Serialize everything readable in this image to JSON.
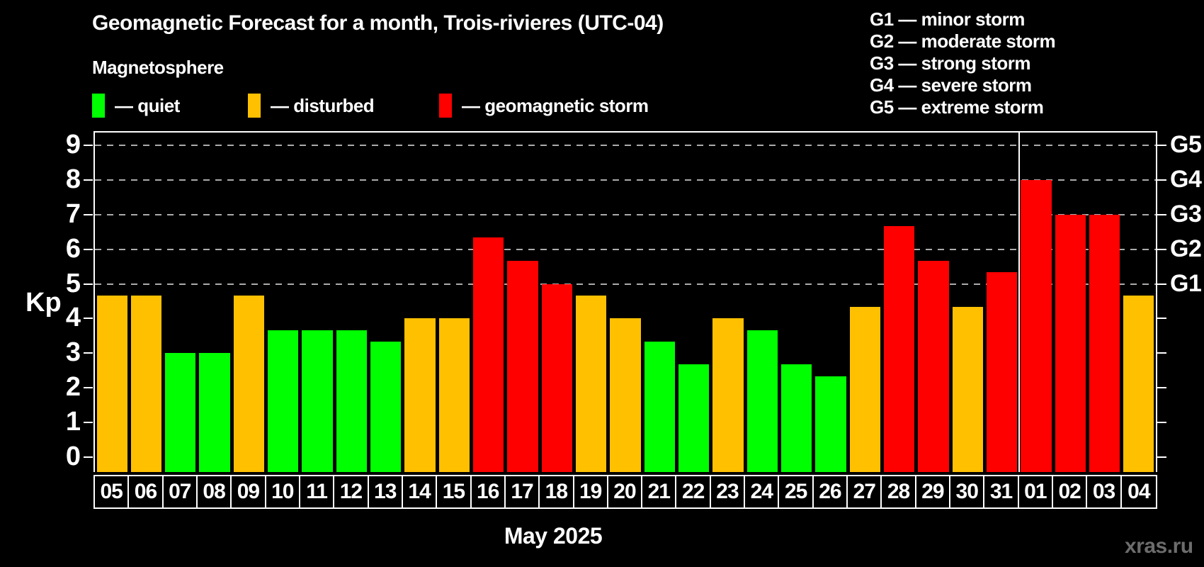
{
  "title": "Geomagnetic Forecast for a month, Trois-rivieres (UTC-04)",
  "subtitle": "Magnetosphere",
  "legend": {
    "items": [
      {
        "key": "quiet",
        "label": "— quiet",
        "color": "#00ff00"
      },
      {
        "key": "disturbed",
        "label": "— disturbed",
        "color": "#ffc000"
      },
      {
        "key": "storm",
        "label": "— geomagnetic storm",
        "color": "#ff0000"
      }
    ]
  },
  "gscale_legend": [
    "G1 — minor storm",
    "G2 — moderate storm",
    "G3 — strong storm",
    "G4 — severe storm",
    "G5 — extreme storm"
  ],
  "axis": {
    "kp_label": "Kp",
    "left_tick_labels": [
      "9",
      "8",
      "7",
      "6",
      "5",
      "4",
      "3",
      "2",
      "1",
      "0"
    ],
    "right_labels": [
      {
        "kp": 9,
        "label": "G5"
      },
      {
        "kp": 8,
        "label": "G4"
      },
      {
        "kp": 7,
        "label": "G3"
      },
      {
        "kp": 6,
        "label": "G2"
      },
      {
        "kp": 5,
        "label": "G1"
      }
    ]
  },
  "month_label": "May 2025",
  "watermark": "xras.ru",
  "chart_data": {
    "type": "bar",
    "title": "Geomagnetic Forecast for a month, Trois-rivieres (UTC-04)",
    "xlabel": "May 2025",
    "ylabel": "Kp",
    "ylim": [
      0,
      9
    ],
    "ytick_step": 1,
    "grid": "dashed horizontal lines at Kp 5,6,7,8,9 only",
    "gridlines": [
      5,
      6,
      7,
      8,
      9
    ],
    "legend_position": "top-left",
    "categories": [
      "05",
      "06",
      "07",
      "08",
      "09",
      "10",
      "11",
      "12",
      "13",
      "14",
      "15",
      "16",
      "17",
      "18",
      "19",
      "20",
      "21",
      "22",
      "23",
      "24",
      "25",
      "26",
      "27",
      "28",
      "29",
      "30",
      "31",
      "01",
      "02",
      "03",
      "04"
    ],
    "values": [
      4.67,
      4.67,
      3.0,
      3.0,
      4.67,
      3.67,
      3.67,
      3.67,
      3.33,
      4.0,
      4.0,
      6.33,
      5.67,
      5.0,
      4.67,
      4.0,
      3.33,
      2.67,
      4.0,
      3.67,
      2.67,
      2.33,
      4.33,
      6.67,
      5.67,
      4.33,
      5.33,
      8.0,
      7.0,
      7.0,
      4.67
    ],
    "statuses": [
      "disturbed",
      "disturbed",
      "quiet",
      "quiet",
      "disturbed",
      "quiet",
      "quiet",
      "quiet",
      "quiet",
      "disturbed",
      "disturbed",
      "storm",
      "storm",
      "storm",
      "disturbed",
      "disturbed",
      "quiet",
      "quiet",
      "disturbed",
      "quiet",
      "quiet",
      "quiet",
      "disturbed",
      "storm",
      "storm",
      "disturbed",
      "storm",
      "storm",
      "storm",
      "storm",
      "disturbed"
    ],
    "status_colors": {
      "quiet": "#00ff00",
      "disturbed": "#ffc000",
      "storm": "#ff0000"
    },
    "month_separator_after_index": 26
  }
}
